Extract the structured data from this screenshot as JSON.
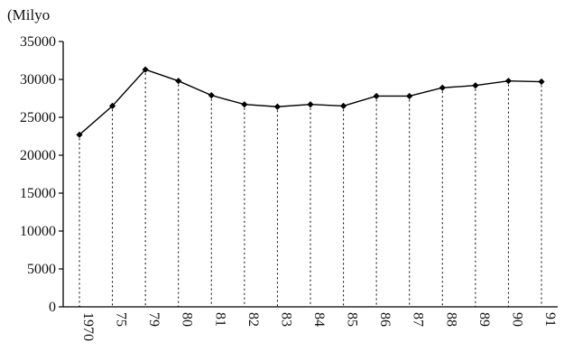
{
  "chart_data": {
    "type": "line",
    "title": "",
    "ylabel": "(Milyo",
    "xlabel": "",
    "categories": [
      "1970",
      "75",
      "79",
      "80",
      "81",
      "82",
      "83",
      "84",
      "85",
      "86",
      "87",
      "88",
      "89",
      "90",
      "91"
    ],
    "series": [
      {
        "values": [
          22700,
          26500,
          31300,
          29800,
          27900,
          26700,
          26400,
          26700,
          26500,
          27800,
          27800,
          28900,
          29200,
          29800,
          29700
        ]
      }
    ],
    "ylim": [
      0,
      35000
    ],
    "yticks": [
      0,
      5000,
      10000,
      15000,
      20000,
      25000,
      30000,
      35000
    ],
    "grid": "dotted vertical drop lines from each point",
    "line_color": "#000000",
    "marker": "diamond"
  }
}
